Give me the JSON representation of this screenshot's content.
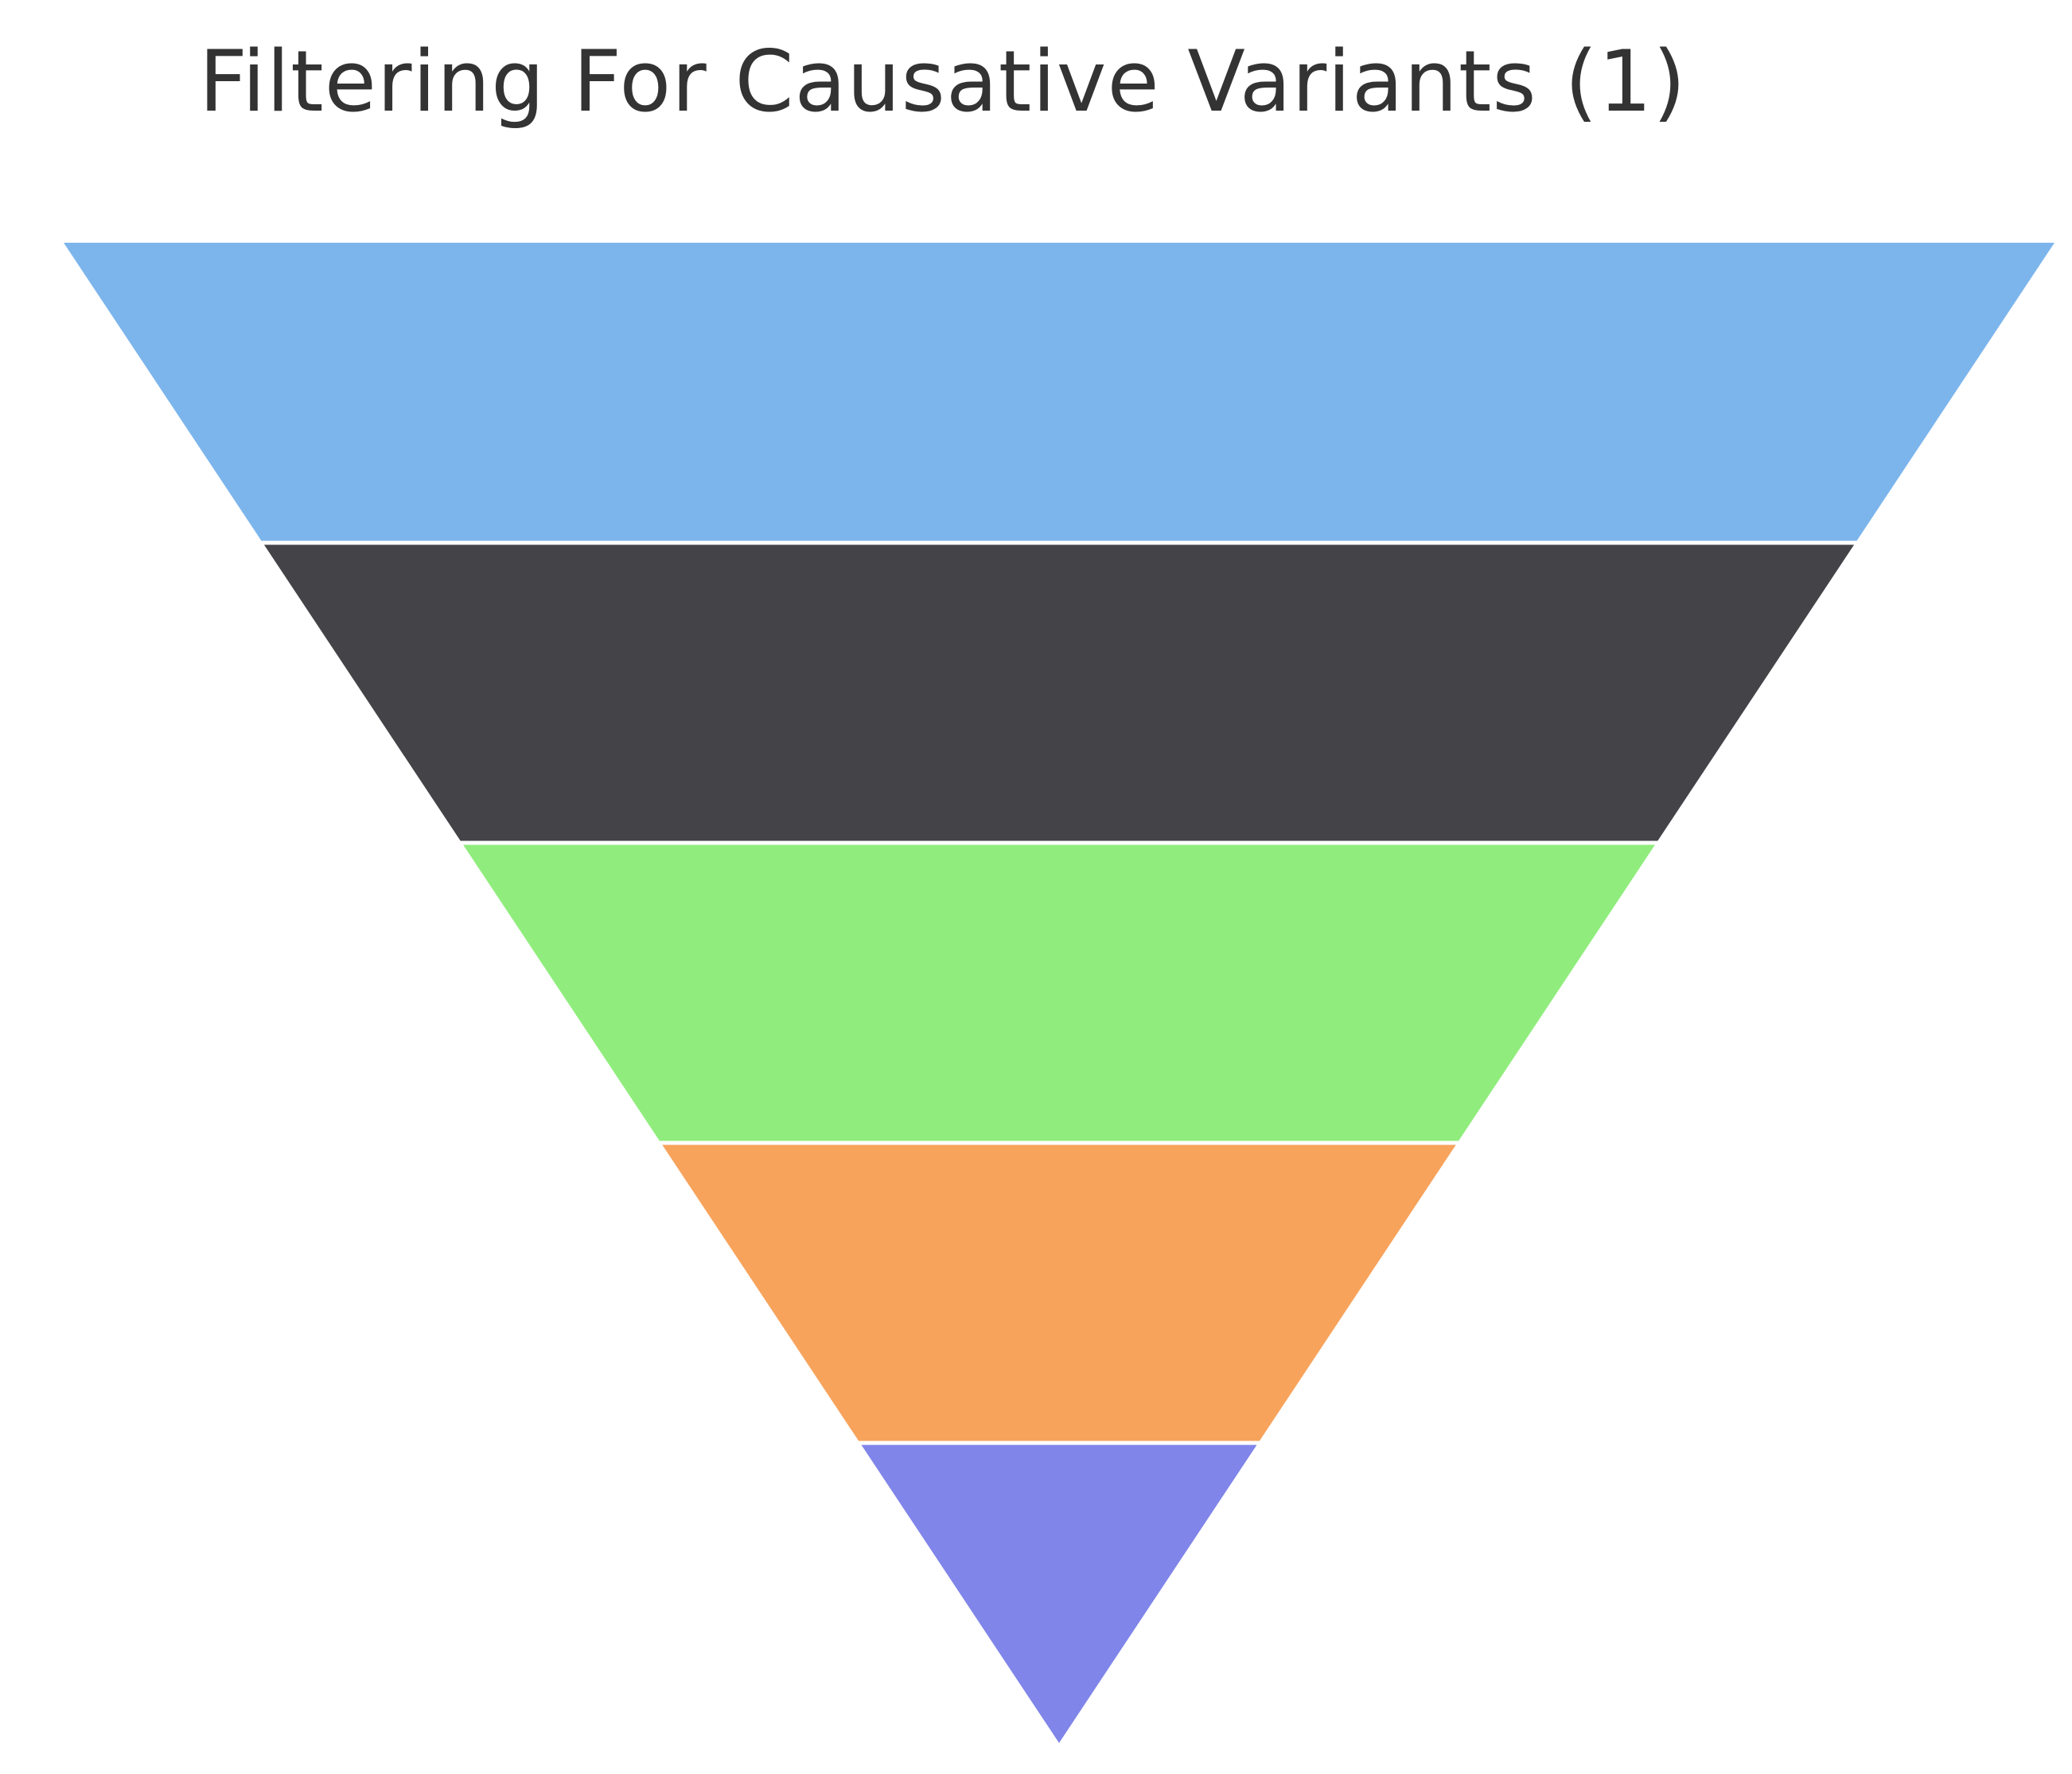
{
  "chart_data": {
    "type": "funnel",
    "title": "Filtering For Causative Variants (1)",
    "orientation": "inverted-triangle",
    "segments": [
      {
        "color": "#7cb5ec"
      },
      {
        "color": "#434348"
      },
      {
        "color": "#90ed7d"
      },
      {
        "color": "#f7a35c"
      },
      {
        "color": "#8085e9"
      }
    ],
    "separator_color": "#ffffff",
    "legend": "none",
    "data_labels": "none"
  }
}
